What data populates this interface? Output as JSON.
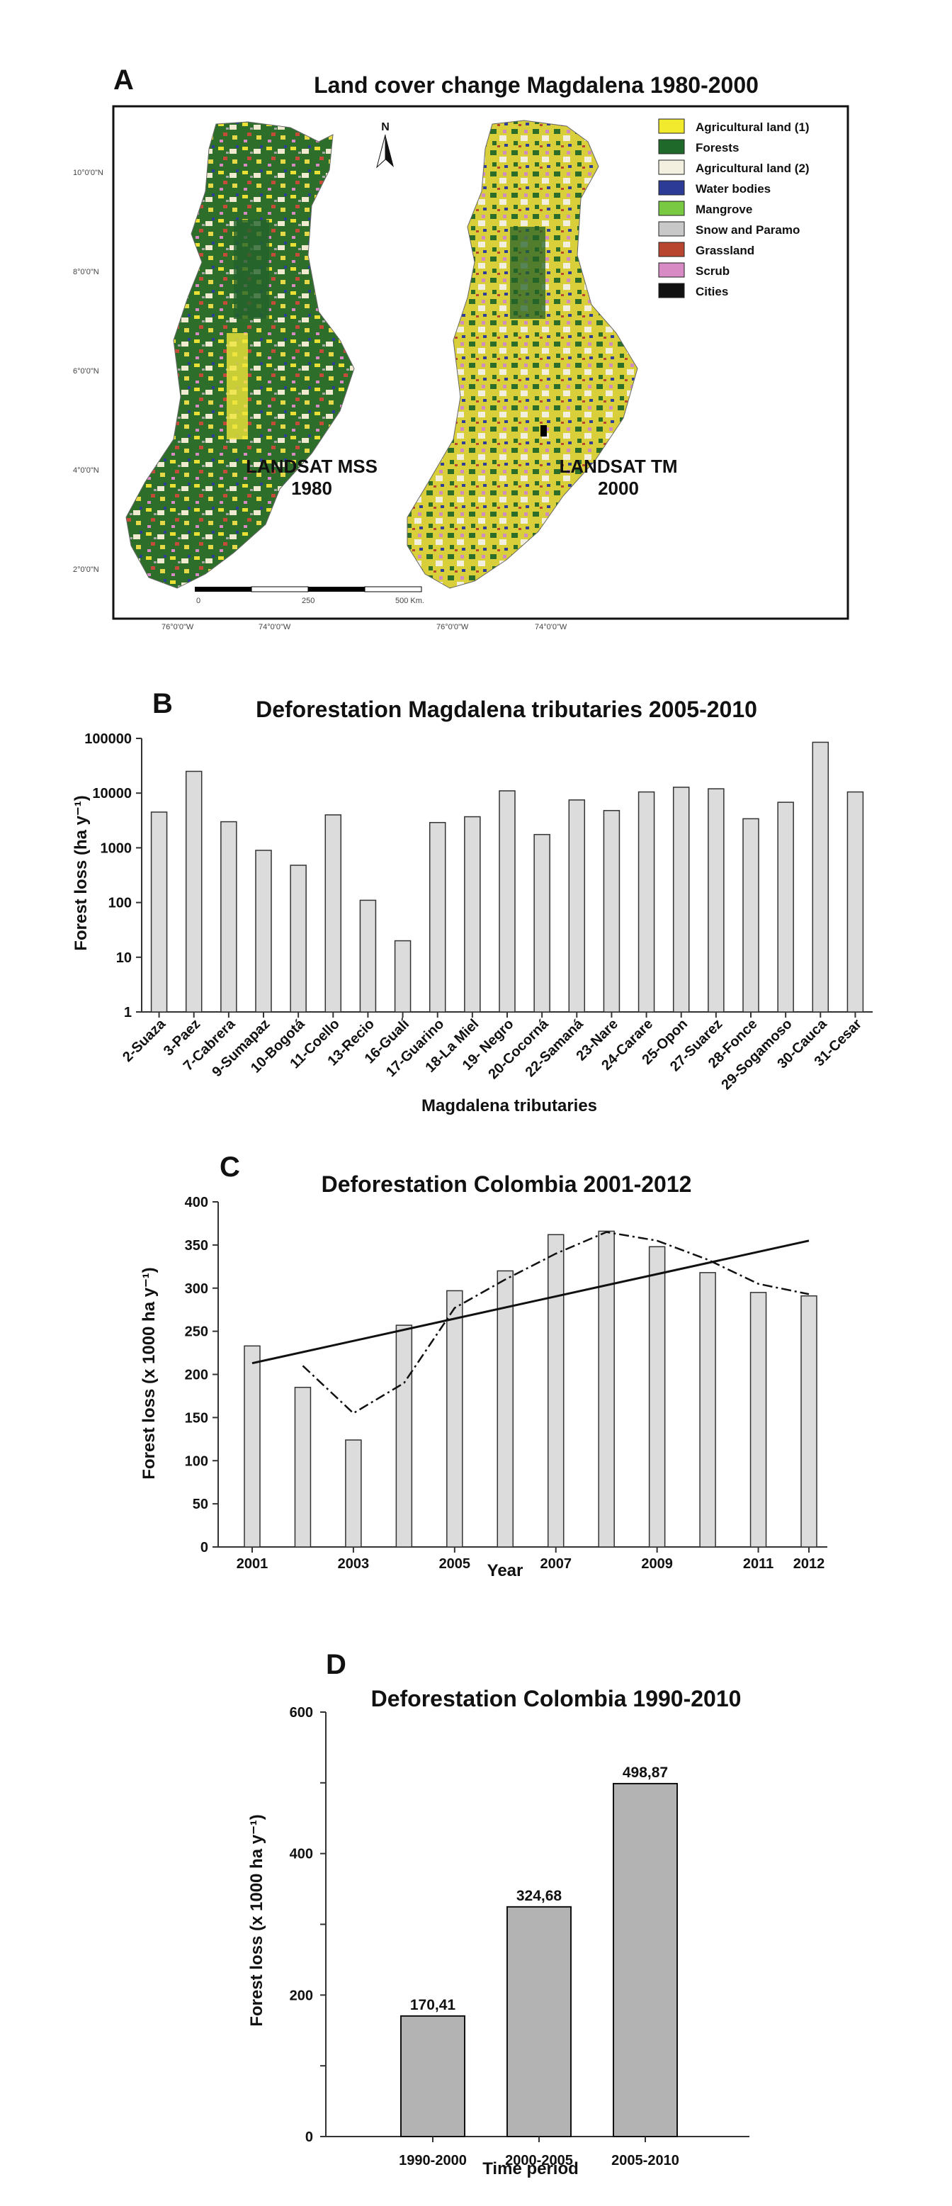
{
  "panel_a": {
    "letter": "A",
    "title": "Land cover change Magdalena 1980-2000",
    "legend": [
      {
        "label": "Agricultural land (1)",
        "color": "#f2ea2c"
      },
      {
        "label": "Forests",
        "color": "#1f6a2a"
      },
      {
        "label": "Agricultural land (2)",
        "color": "#f3f0df"
      },
      {
        "label": "Water bodies",
        "color": "#2b3b96"
      },
      {
        "label": "Mangrove",
        "color": "#7ac943"
      },
      {
        "label": "Snow and Paramo",
        "color": "#c8c8c8"
      },
      {
        "label": "Grassland",
        "color": "#b8462f"
      },
      {
        "label": "Scrub",
        "color": "#d78ac4"
      },
      {
        "label": "Cities",
        "color": "#111111"
      }
    ],
    "map_left_line1": "LANDSAT MSS",
    "map_left_line2": "1980",
    "map_right_line1": "LANDSAT TM",
    "map_right_line2": "2000",
    "north_label": "N",
    "lat_ticks": [
      "10°0'0\"N",
      "8°0'0\"N",
      "6°0'0\"N",
      "4°0'0\"N",
      "2°0'0\"N"
    ],
    "lon_ticks": [
      "76°0'0\"W",
      "74°0'0\"W",
      "76°0'0\"W",
      "74°0'0\"W"
    ],
    "scale_labels": [
      "0",
      "250",
      "500 Km."
    ]
  },
  "chart_data": [
    {
      "panel": "B",
      "type": "bar",
      "title": "Deforestation Magdalena tributaries 2005-2010",
      "xlabel": "Magdalena tributaries",
      "ylabel": "Forest loss (ha y⁻¹)",
      "yscale": "log",
      "ylim": [
        1,
        100000
      ],
      "yticks": [
        "100000",
        "10000",
        "1000",
        "100",
        "10",
        "1"
      ],
      "categories": [
        "2-Suaza",
        "3-Paez",
        "7-Cabrera",
        "9-Sumapaz",
        "10-Bogotá",
        "11-Coello",
        "13-Recio",
        "16-Gualí",
        "17-Guarino",
        "18-La Miel",
        "19- Negro",
        "20-Cocorná",
        "22-Samaná",
        "23-Nare",
        "24-Carare",
        "25-Opon",
        "27-Suarez",
        "28-Fonce",
        "29-Sogamoso",
        "30-Cauca",
        "31-Cesar"
      ],
      "values": [
        4500,
        25000,
        3000,
        900,
        480,
        4000,
        110,
        20,
        2900,
        3700,
        11000,
        1750,
        7500,
        4800,
        10500,
        12800,
        12000,
        3400,
        6800,
        85000,
        10500
      ],
      "bar_color": "#dcdcdc"
    },
    {
      "panel": "C",
      "type": "bar",
      "title": "Deforestation Colombia 2001-2012",
      "xlabel": "Year",
      "ylabel": "Forest loss (x 1000 ha y⁻¹)",
      "ylim": [
        0,
        400
      ],
      "yticks": [
        "0",
        "50",
        "100",
        "150",
        "200",
        "250",
        "300",
        "350",
        "400"
      ],
      "categories": [
        "2001",
        "2002",
        "2003",
        "2004",
        "2005",
        "2006",
        "2007",
        "2008",
        "2009",
        "2010",
        "2011",
        "2012"
      ],
      "xtick_labels": [
        "2001",
        "",
        "2003",
        "",
        "2005",
        "",
        "2007",
        "",
        "2009",
        "",
        "2011",
        "2012"
      ],
      "values": [
        233,
        185,
        124,
        257,
        297,
        320,
        362,
        366,
        348,
        318,
        295,
        291
      ],
      "trend_line": {
        "start": [
          2001,
          213
        ],
        "end": [
          2012,
          355
        ]
      },
      "moving_average": {
        "x": [
          2002,
          2003,
          2004,
          2005,
          2006,
          2007,
          2008,
          2009,
          2010,
          2011,
          2012
        ],
        "y": [
          210,
          155,
          190,
          277,
          310,
          340,
          365,
          355,
          333,
          305,
          293
        ]
      },
      "bar_color": "#dcdcdc"
    },
    {
      "panel": "D",
      "type": "bar",
      "title": "Deforestation Colombia 1990-2010",
      "xlabel": "Time period",
      "ylabel": "Forest loss (x 1000 ha y⁻¹)",
      "ylim": [
        0,
        600
      ],
      "yticks": [
        "0",
        "200",
        "400",
        "600"
      ],
      "categories": [
        "1990-2000",
        "2000-2005",
        "2005-2010"
      ],
      "values": [
        170.41,
        324.68,
        498.87
      ],
      "value_labels": [
        "170,41",
        "324,68",
        "498,87"
      ],
      "bar_color": "#b3b3b3"
    }
  ]
}
